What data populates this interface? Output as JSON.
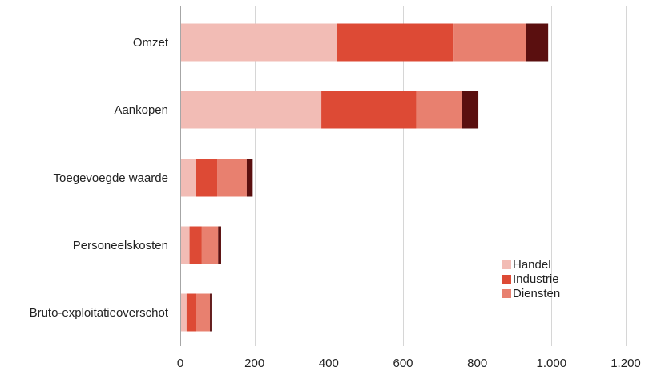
{
  "chart_data": {
    "type": "bar",
    "orientation": "horizontal",
    "stacked": true,
    "categories": [
      "Omzet",
      "Aankopen",
      "Toegevoegde waarde",
      "Personeelskosten",
      "Bruto-exploitatieoverschot"
    ],
    "series": [
      {
        "name": "Handel",
        "color": "#f2bcb5",
        "values": [
          423,
          380,
          42,
          25,
          17
        ]
      },
      {
        "name": "Industrie",
        "color": "#dd4a35",
        "values": [
          311,
          256,
          58,
          33,
          25
        ]
      },
      {
        "name": "Diensten",
        "color": "#e8806f",
        "values": [
          197,
          122,
          79,
          44,
          38
        ]
      },
      {
        "color": "#5a0f0f",
        "values": [
          60,
          45,
          16,
          8,
          4
        ]
      }
    ],
    "xlim": [
      0,
      1200
    ],
    "xticks": [
      0,
      200,
      400,
      600,
      800,
      1000,
      1200
    ],
    "xtick_labels": [
      "0",
      "200",
      "400",
      "600",
      "800",
      "1.000",
      "1.200"
    ],
    "grid": "vertical",
    "legend_position": "bottom-right",
    "legend_entries": [
      "Handel",
      "Industrie",
      "Diensten"
    ]
  }
}
